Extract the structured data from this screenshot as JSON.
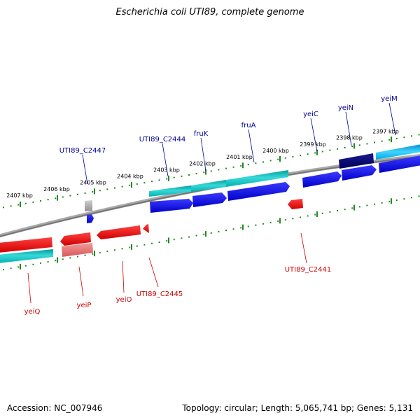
{
  "title": "Escherichia coli UTI89, complete genome",
  "footer": {
    "accession": "Accession: NC_007946",
    "topology": "Topology: circular; Length: 5,065,741 bp; Genes: 5,131"
  },
  "colors": {
    "forward_gene": "#0000dd",
    "forward_gene_dark": "#000077",
    "reverse_gene": "#ee0000",
    "reverse_gene_light": "#e87070",
    "cds": "#00a8a8",
    "cds_light": "#00b8e0",
    "backbone": "#888888",
    "tick": "#228822",
    "forward_label": "#000099",
    "reverse_label": "#cc0000",
    "other_gene": "#b0b0b0"
  },
  "ticks": [
    {
      "label": "2407 kbp"
    },
    {
      "label": "2406 kbp"
    },
    {
      "label": "2405 kbp"
    },
    {
      "label": "2404 kbp"
    },
    {
      "label": "2403 kbp"
    },
    {
      "label": "2402 kbp"
    },
    {
      "label": "2401 kbp"
    },
    {
      "label": "2400 kbp"
    },
    {
      "label": "2399 kbp"
    },
    {
      "label": "2398 kbp"
    },
    {
      "label": "2397 kbp"
    }
  ],
  "forward_labels": [
    {
      "name": "UTI89_C2447"
    },
    {
      "name": "UTI89_C2444"
    },
    {
      "name": "fruK"
    },
    {
      "name": "fruA"
    },
    {
      "name": "yeiC"
    },
    {
      "name": "yeiN"
    },
    {
      "name": "yeiM"
    }
  ],
  "reverse_labels": [
    {
      "name": "yeiQ"
    },
    {
      "name": "yeiP"
    },
    {
      "name": "yeiO"
    },
    {
      "name": "UTI89_C2445"
    },
    {
      "name": "UTI89_C2441"
    }
  ]
}
